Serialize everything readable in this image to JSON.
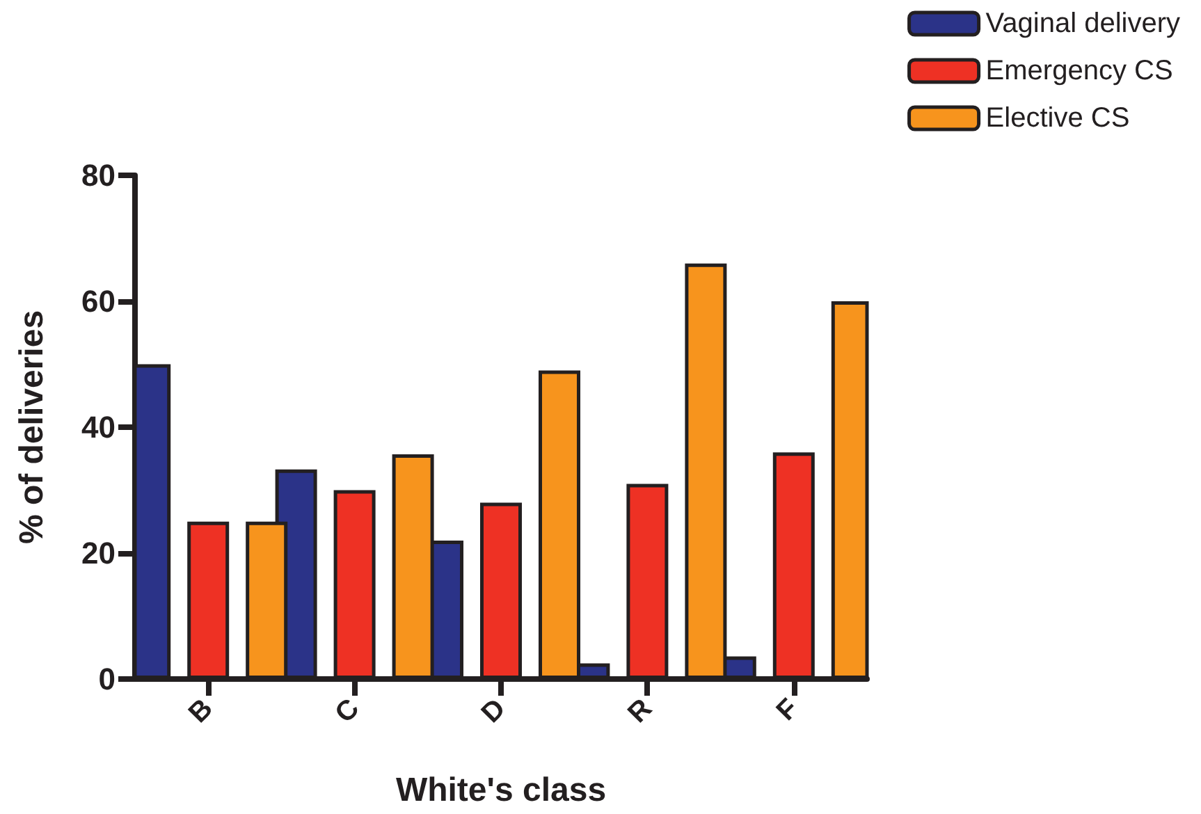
{
  "chart_data": {
    "type": "bar",
    "xlabel": "White's class",
    "ylabel": "% of deliveries",
    "categories": [
      "B",
      "C",
      "D",
      "R",
      "F"
    ],
    "series": [
      {
        "name": "Vaginal delivery",
        "color": "#2b3388",
        "values": [
          50,
          33.3,
          22,
          2.5,
          3.6
        ]
      },
      {
        "name": "Emergency CS",
        "color": "#ee3124",
        "values": [
          25,
          30,
          28,
          31,
          36
        ]
      },
      {
        "name": "Elective CS",
        "color": "#f7941d",
        "values": [
          25,
          35.7,
          49,
          66,
          60
        ]
      }
    ],
    "ylim": [
      0,
      80
    ],
    "yticks": [
      0,
      20,
      40,
      60,
      80
    ],
    "grid": false,
    "legend": "top right"
  }
}
